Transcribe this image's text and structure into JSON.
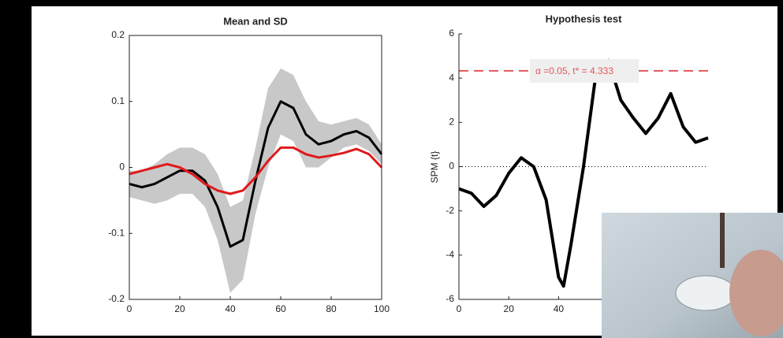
{
  "chart_data": [
    {
      "type": "line",
      "title": "Mean and SD",
      "x": [
        0,
        5,
        10,
        15,
        20,
        25,
        30,
        35,
        40,
        45,
        50,
        55,
        60,
        65,
        70,
        75,
        80,
        85,
        90,
        95,
        100
      ],
      "xlim": [
        0,
        100
      ],
      "xticks": [
        0,
        20,
        40,
        60,
        80,
        100
      ],
      "ylim": [
        -0.2,
        0.2
      ],
      "yticks": [
        -0.2,
        -0.1,
        0,
        0.1,
        0.2
      ],
      "band": {
        "color": "#c8c8c8",
        "lower": [
          -0.045,
          -0.05,
          -0.055,
          -0.05,
          -0.04,
          -0.04,
          -0.06,
          -0.11,
          -0.19,
          -0.17,
          -0.07,
          0.0,
          0.05,
          0.04,
          0.0,
          0.0,
          0.015,
          0.03,
          0.035,
          0.025,
          0.005
        ],
        "upper": [
          -0.005,
          -0.005,
          0.005,
          0.02,
          0.03,
          0.03,
          0.02,
          -0.01,
          -0.06,
          -0.05,
          0.03,
          0.12,
          0.15,
          0.14,
          0.1,
          0.07,
          0.065,
          0.07,
          0.075,
          0.065,
          0.035
        ]
      },
      "series": [
        {
          "color": "#000000",
          "values": [
            -0.025,
            -0.03,
            -0.025,
            -0.015,
            -0.005,
            -0.005,
            -0.02,
            -0.06,
            -0.12,
            -0.11,
            -0.02,
            0.06,
            0.1,
            0.09,
            0.05,
            0.035,
            0.04,
            0.05,
            0.055,
            0.045,
            0.02
          ]
        },
        {
          "color": "#e0191b",
          "values": [
            -0.01,
            -0.005,
            0.0,
            0.005,
            0.0,
            -0.01,
            -0.025,
            -0.035,
            -0.04,
            -0.035,
            -0.015,
            0.01,
            0.03,
            0.03,
            0.02,
            0.015,
            0.018,
            0.022,
            0.028,
            0.02,
            0.0
          ]
        }
      ]
    },
    {
      "type": "line",
      "title": "Hypothesis test",
      "ylabel": "SPM {t}",
      "x": [
        0,
        5,
        10,
        15,
        20,
        25,
        30,
        35,
        40,
        42,
        45,
        50,
        55,
        60,
        65,
        70,
        75,
        80,
        85,
        90,
        95,
        100
      ],
      "xlim": [
        0,
        100
      ],
      "xticks": [
        0,
        20,
        40
      ],
      "ylim": [
        -6,
        6
      ],
      "yticks": [
        -6,
        -4,
        -2,
        0,
        2,
        4,
        6
      ],
      "zero_line": true,
      "threshold": 4.333,
      "threshold_color": "#e0585a",
      "annotation": "α =0.05,    t* = 4.333",
      "series": [
        {
          "color": "#000000",
          "values": [
            -1,
            -1.2,
            -1.8,
            -1.3,
            -0.3,
            0.4,
            0,
            -1.5,
            -5.0,
            -5.4,
            -3.5,
            0,
            4.2,
            4.8,
            3.0,
            2.2,
            1.5,
            2.2,
            3.3,
            1.8,
            1.1,
            1.3
          ]
        }
      ]
    }
  ]
}
